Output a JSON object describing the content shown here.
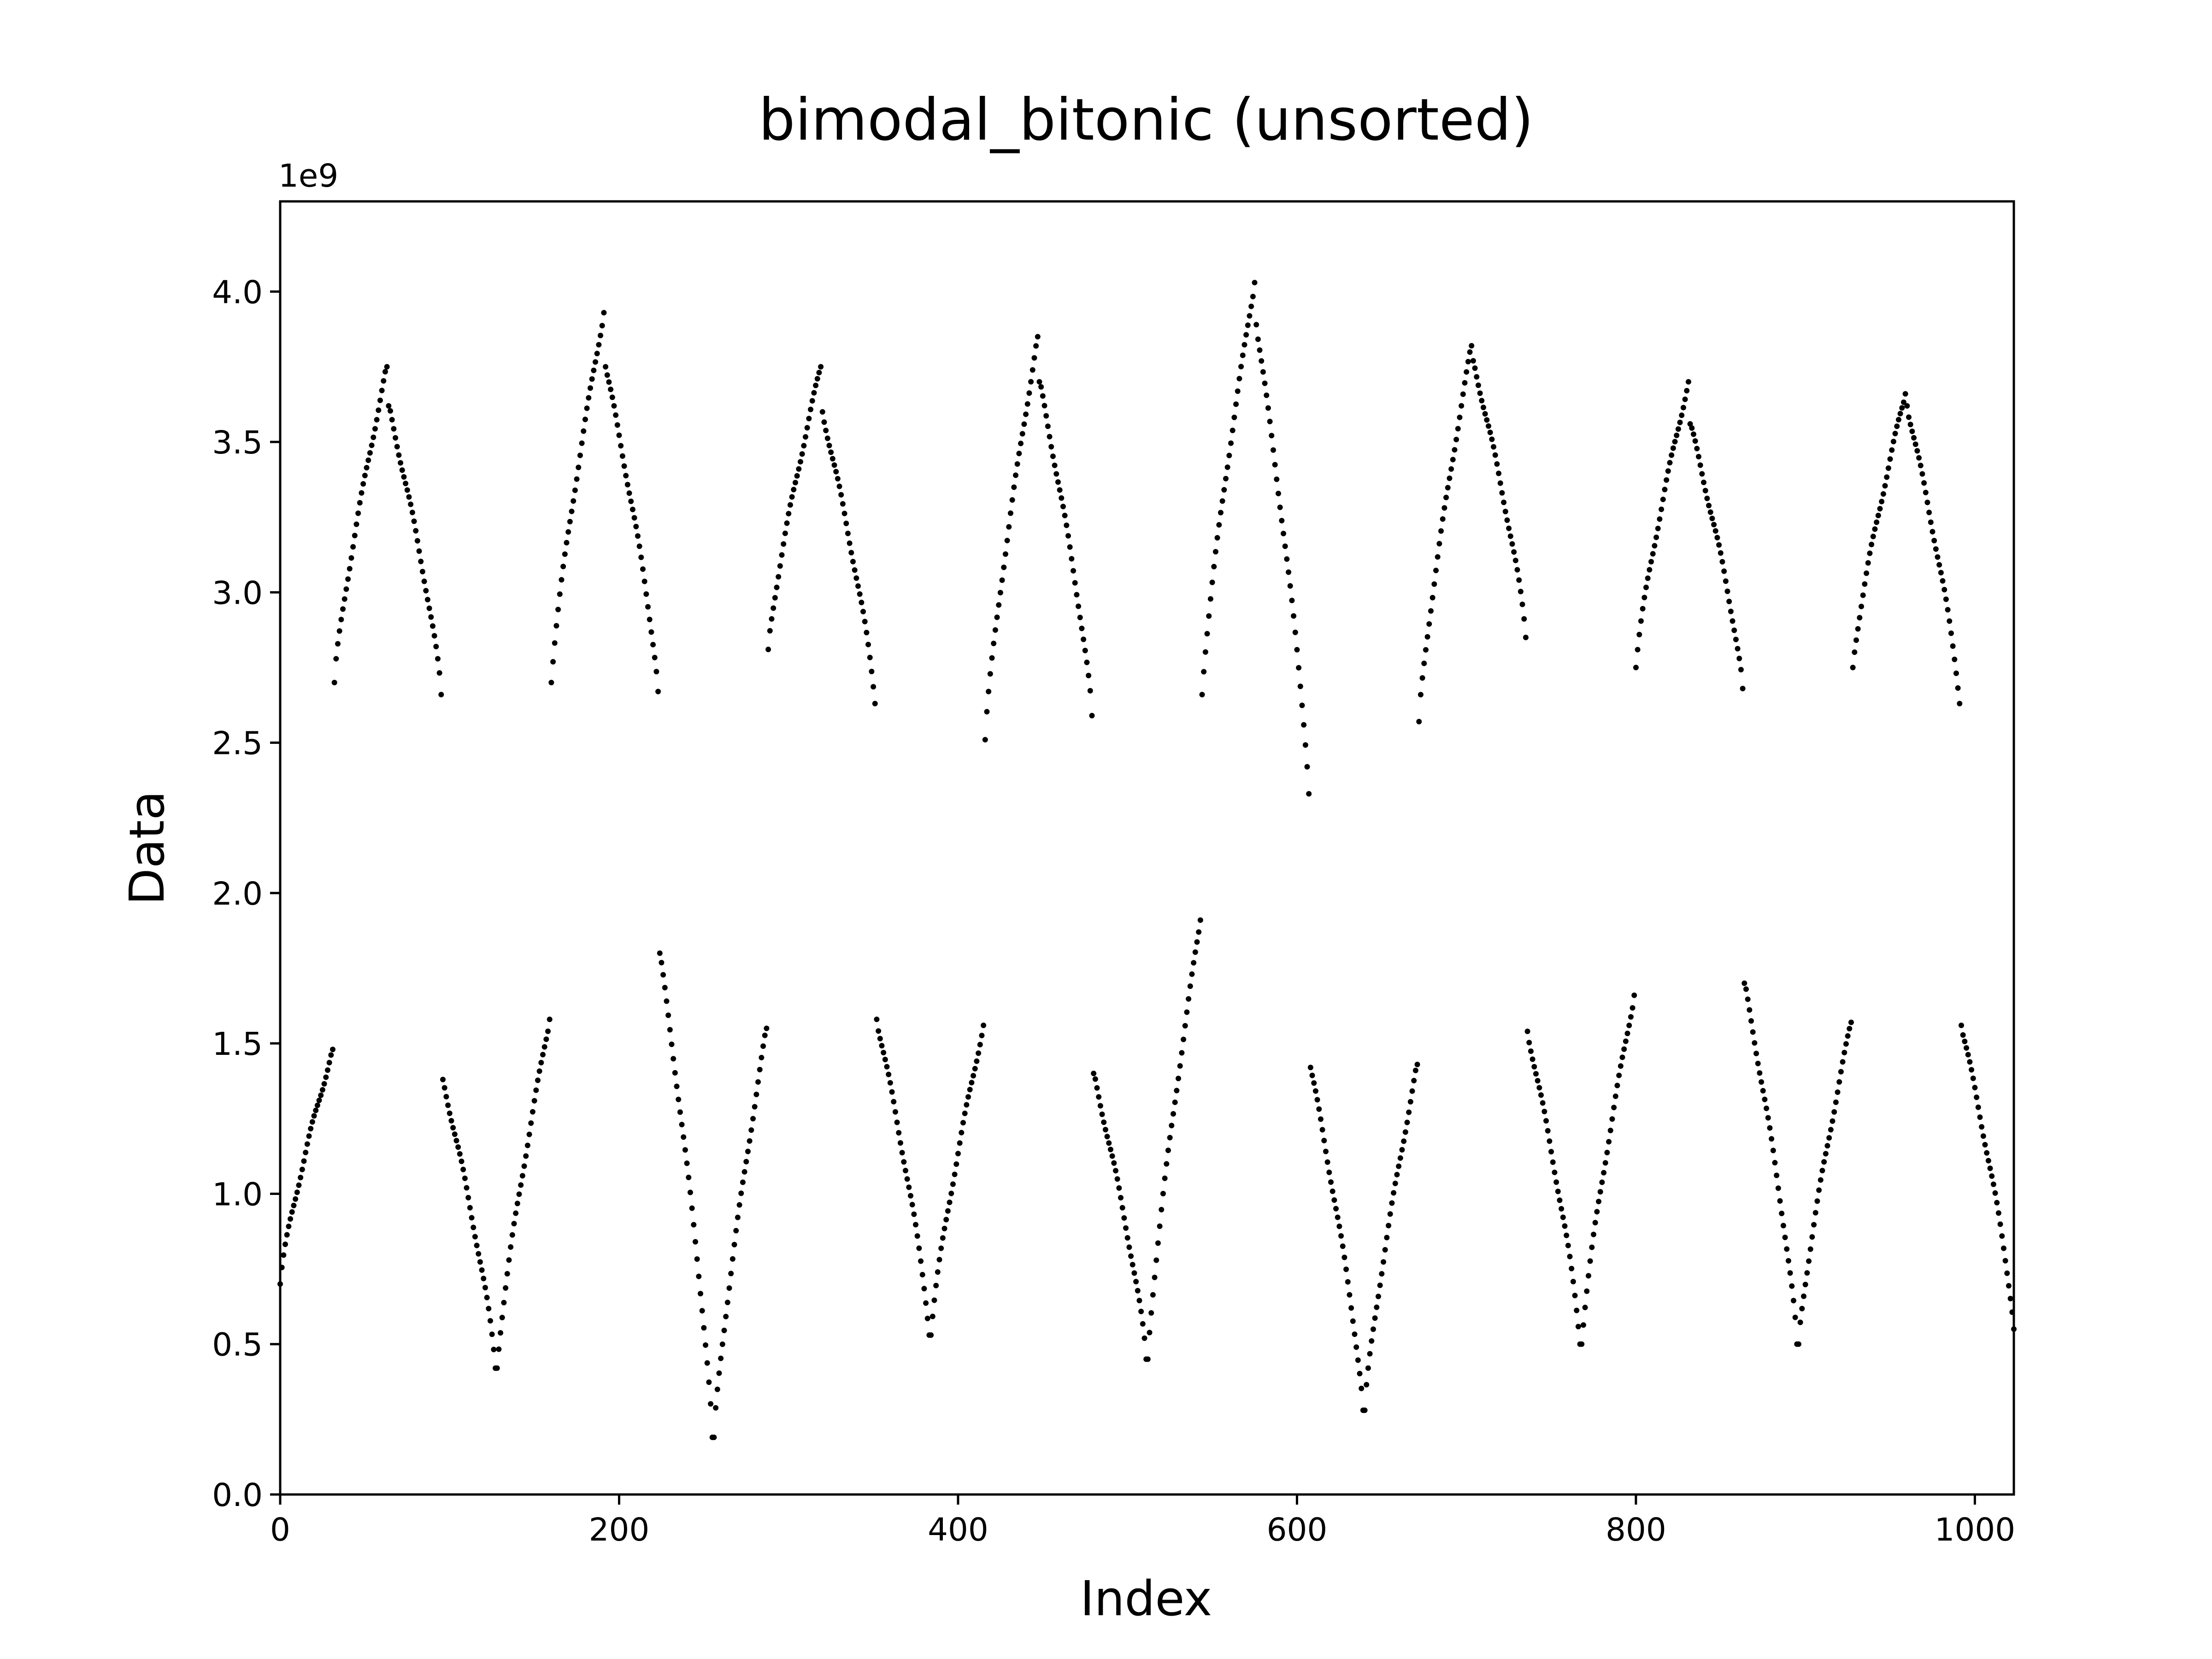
{
  "chart_data": {
    "type": "scatter",
    "title": "bimodal_bitonic (unsorted)",
    "xlabel": "Index",
    "ylabel": "Data",
    "y_offset_label": "1e9",
    "xlim": [
      0,
      1023
    ],
    "ylim": [
      0.0,
      4.3
    ],
    "x_ticks": [
      0,
      200,
      400,
      600,
      800,
      1000
    ],
    "x_tick_labels": [
      "0",
      "200",
      "400",
      "600",
      "800",
      "1000"
    ],
    "y_ticks": [
      0.0,
      0.5,
      1.0,
      1.5,
      2.0,
      2.5,
      3.0,
      3.5,
      4.0
    ],
    "y_tick_labels": [
      "0.0",
      "0.5",
      "1.0",
      "1.5",
      "2.0",
      "2.5",
      "3.0",
      "3.5",
      "4.0"
    ],
    "grid": false,
    "legend": "none",
    "marker_color": "#000000",
    "y_unit_multiplier": 1000000000,
    "segment_length": 32,
    "segments": [
      {
        "start": 0,
        "lo": 0.7,
        "hi": 1.48,
        "dir": "up"
      },
      {
        "start": 32,
        "lo": 2.7,
        "hi": 3.75,
        "dir": "up"
      },
      {
        "start": 64,
        "lo": 2.66,
        "hi": 3.62,
        "dir": "down"
      },
      {
        "start": 96,
        "lo": 0.42,
        "hi": 1.38,
        "dir": "down"
      },
      {
        "start": 128,
        "lo": 0.42,
        "hi": 1.58,
        "dir": "up"
      },
      {
        "start": 160,
        "lo": 2.7,
        "hi": 3.93,
        "dir": "up"
      },
      {
        "start": 192,
        "lo": 2.67,
        "hi": 3.75,
        "dir": "down"
      },
      {
        "start": 224,
        "lo": 0.19,
        "hi": 1.8,
        "dir": "down"
      },
      {
        "start": 256,
        "lo": 0.19,
        "hi": 1.55,
        "dir": "up"
      },
      {
        "start": 288,
        "lo": 2.81,
        "hi": 3.75,
        "dir": "up"
      },
      {
        "start": 320,
        "lo": 2.63,
        "hi": 3.6,
        "dir": "down"
      },
      {
        "start": 352,
        "lo": 0.53,
        "hi": 1.58,
        "dir": "down"
      },
      {
        "start": 384,
        "lo": 0.53,
        "hi": 1.56,
        "dir": "up"
      },
      {
        "start": 416,
        "lo": 2.51,
        "hi": 3.85,
        "dir": "up"
      },
      {
        "start": 448,
        "lo": 2.59,
        "hi": 3.7,
        "dir": "down"
      },
      {
        "start": 480,
        "lo": 0.45,
        "hi": 1.4,
        "dir": "down"
      },
      {
        "start": 512,
        "lo": 0.45,
        "hi": 1.91,
        "dir": "up"
      },
      {
        "start": 544,
        "lo": 2.66,
        "hi": 4.03,
        "dir": "up"
      },
      {
        "start": 576,
        "lo": 2.33,
        "hi": 3.89,
        "dir": "down"
      },
      {
        "start": 608,
        "lo": 0.28,
        "hi": 1.42,
        "dir": "down"
      },
      {
        "start": 640,
        "lo": 0.28,
        "hi": 1.43,
        "dir": "up"
      },
      {
        "start": 672,
        "lo": 2.57,
        "hi": 3.82,
        "dir": "up"
      },
      {
        "start": 704,
        "lo": 2.85,
        "hi": 3.77,
        "dir": "down"
      },
      {
        "start": 736,
        "lo": 0.5,
        "hi": 1.54,
        "dir": "down"
      },
      {
        "start": 768,
        "lo": 0.5,
        "hi": 1.66,
        "dir": "up"
      },
      {
        "start": 800,
        "lo": 2.75,
        "hi": 3.7,
        "dir": "up"
      },
      {
        "start": 832,
        "lo": 2.68,
        "hi": 3.56,
        "dir": "down"
      },
      {
        "start": 864,
        "lo": 0.5,
        "hi": 1.7,
        "dir": "down"
      },
      {
        "start": 896,
        "lo": 0.5,
        "hi": 1.57,
        "dir": "up"
      },
      {
        "start": 928,
        "lo": 2.75,
        "hi": 3.66,
        "dir": "up"
      },
      {
        "start": 960,
        "lo": 2.63,
        "hi": 3.62,
        "dir": "down"
      },
      {
        "start": 992,
        "lo": 0.55,
        "hi": 1.56,
        "dir": "down"
      }
    ]
  }
}
